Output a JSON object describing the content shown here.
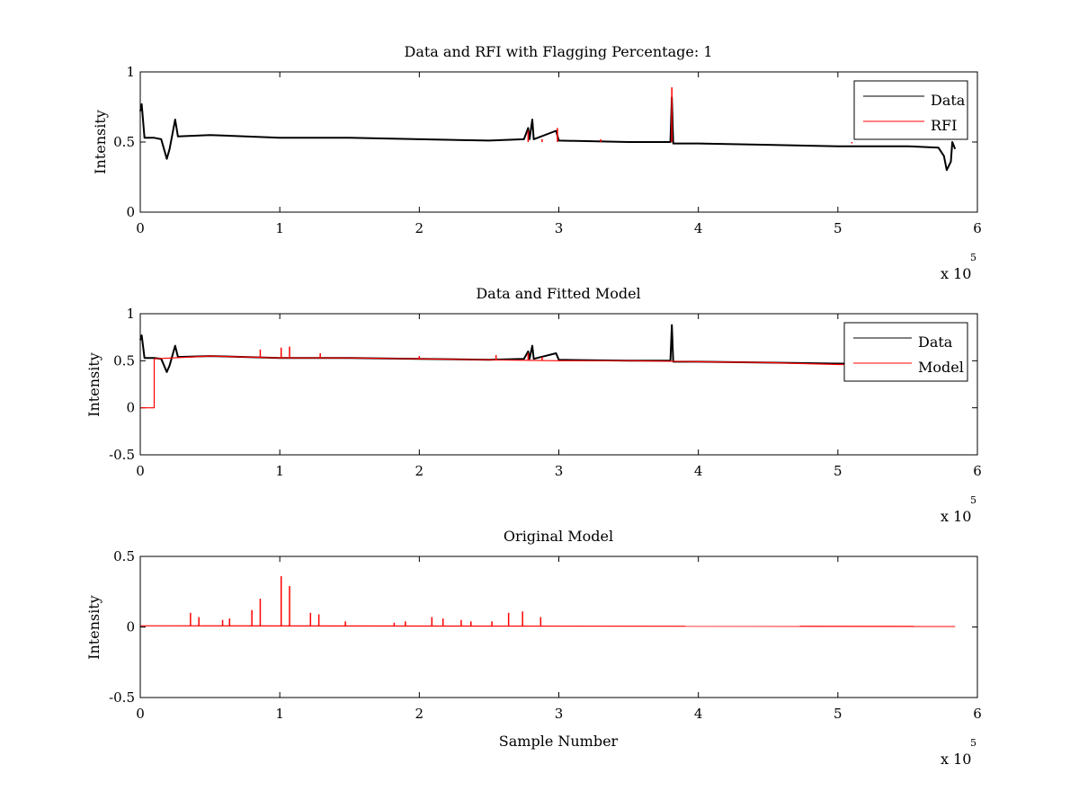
{
  "figure": {
    "background": "#ffffff",
    "data_color": "#000000",
    "model_color": "#ff0000"
  },
  "chart_data": [
    {
      "type": "line",
      "title": "Data and RFI with Flagging Percentage: 1",
      "xlabel": "",
      "ylabel": "Intensity",
      "xlim": [
        0,
        6
      ],
      "ylim": [
        0,
        1
      ],
      "xticks": [
        "0",
        "1",
        "2",
        "3",
        "4",
        "5",
        "6"
      ],
      "yticks": [
        "0",
        "0.5",
        "1"
      ],
      "x_multiplier": {
        "base": "x 10",
        "exponent": "5"
      },
      "legend_position": "top-right",
      "legend": [
        "Data",
        "RFI"
      ],
      "grid": false,
      "series": [
        {
          "name": "Data",
          "color": "#000000",
          "points": [
            [
              0,
              0.72
            ],
            [
              0.01,
              0.77
            ],
            [
              0.03,
              0.53
            ],
            [
              0.1,
              0.53
            ],
            [
              0.15,
              0.52
            ],
            [
              0.19,
              0.38
            ],
            [
              0.21,
              0.45
            ],
            [
              0.25,
              0.66
            ],
            [
              0.27,
              0.54
            ],
            [
              0.5,
              0.55
            ],
            [
              1.0,
              0.53
            ],
            [
              1.5,
              0.53
            ],
            [
              2.0,
              0.52
            ],
            [
              2.5,
              0.51
            ],
            [
              2.75,
              0.52
            ],
            [
              2.78,
              0.6
            ],
            [
              2.79,
              0.52
            ],
            [
              2.81,
              0.66
            ],
            [
              2.82,
              0.52
            ],
            [
              2.98,
              0.58
            ],
            [
              3.0,
              0.51
            ],
            [
              3.5,
              0.5
            ],
            [
              3.8,
              0.5
            ],
            [
              3.81,
              0.82
            ],
            [
              3.82,
              0.49
            ],
            [
              4.0,
              0.49
            ],
            [
              4.5,
              0.48
            ],
            [
              5.0,
              0.47
            ],
            [
              5.5,
              0.47
            ],
            [
              5.72,
              0.46
            ],
            [
              5.76,
              0.4
            ],
            [
              5.78,
              0.3
            ],
            [
              5.81,
              0.36
            ],
            [
              5.82,
              0.5
            ],
            [
              5.84,
              0.45
            ]
          ]
        },
        {
          "name": "RFI",
          "color": "#ff0000",
          "spikes": [
            [
              2.78,
              0.58
            ],
            [
              2.88,
              0.52
            ],
            [
              2.99,
              0.6
            ],
            [
              3.3,
              0.52
            ],
            [
              3.81,
              0.89
            ],
            [
              5.1,
              0.49
            ]
          ]
        }
      ]
    },
    {
      "type": "line",
      "title": "Data and Fitted Model",
      "xlabel": "",
      "ylabel": "Intensity",
      "xlim": [
        0,
        6
      ],
      "ylim": [
        -0.5,
        1
      ],
      "xticks": [
        "0",
        "1",
        "2",
        "3",
        "4",
        "5",
        "6"
      ],
      "yticks": [
        "-0.5",
        "0",
        "0.5",
        "1"
      ],
      "x_multiplier": {
        "base": "x 10",
        "exponent": "5"
      },
      "legend_position": "top-right",
      "legend": [
        "Data",
        "Model"
      ],
      "grid": false,
      "series": [
        {
          "name": "Data",
          "color": "#000000",
          "points": [
            [
              0,
              0.72
            ],
            [
              0.01,
              0.77
            ],
            [
              0.03,
              0.53
            ],
            [
              0.1,
              0.53
            ],
            [
              0.15,
              0.52
            ],
            [
              0.19,
              0.38
            ],
            [
              0.21,
              0.45
            ],
            [
              0.25,
              0.66
            ],
            [
              0.27,
              0.54
            ],
            [
              0.5,
              0.55
            ],
            [
              1.0,
              0.53
            ],
            [
              1.5,
              0.53
            ],
            [
              2.0,
              0.52
            ],
            [
              2.5,
              0.51
            ],
            [
              2.75,
              0.52
            ],
            [
              2.78,
              0.6
            ],
            [
              2.79,
              0.52
            ],
            [
              2.81,
              0.66
            ],
            [
              2.82,
              0.52
            ],
            [
              2.98,
              0.58
            ],
            [
              3.0,
              0.51
            ],
            [
              3.5,
              0.5
            ],
            [
              3.8,
              0.5
            ],
            [
              3.81,
              0.88
            ],
            [
              3.82,
              0.49
            ],
            [
              4.0,
              0.49
            ],
            [
              4.5,
              0.48
            ],
            [
              5.0,
              0.47
            ],
            [
              5.1,
              0.47
            ]
          ]
        },
        {
          "name": "Model",
          "color": "#ff0000",
          "points": [
            [
              0,
              0
            ],
            [
              0.1,
              0
            ],
            [
              0.1,
              0.52
            ],
            [
              0.5,
              0.55
            ],
            [
              1.0,
              0.53
            ],
            [
              1.5,
              0.53
            ],
            [
              2.0,
              0.52
            ],
            [
              2.5,
              0.51
            ],
            [
              3.0,
              0.5
            ],
            [
              3.5,
              0.5
            ],
            [
              4.0,
              0.49
            ],
            [
              4.5,
              0.48
            ],
            [
              5.0,
              0.46
            ],
            [
              5.1,
              0.46
            ]
          ],
          "spikes": [
            [
              0.86,
              0.62
            ],
            [
              1.01,
              0.64
            ],
            [
              1.07,
              0.65
            ],
            [
              1.29,
              0.58
            ],
            [
              2.0,
              0.55
            ],
            [
              2.55,
              0.56
            ],
            [
              2.78,
              0.58
            ],
            [
              2.88,
              0.54
            ]
          ]
        }
      ]
    },
    {
      "type": "line",
      "title": "Original Model",
      "xlabel": "Sample Number",
      "ylabel": "Intensity",
      "xlim": [
        0,
        6
      ],
      "ylim": [
        -0.5,
        0.5
      ],
      "xticks": [
        "0",
        "1",
        "2",
        "3",
        "4",
        "5",
        "6"
      ],
      "yticks": [
        "-0.5",
        "0",
        "0.5"
      ],
      "x_multiplier": {
        "base": "x 10",
        "exponent": "5"
      },
      "legend_position": "none",
      "legend": [],
      "grid": false,
      "series": [
        {
          "name": "",
          "color": "#ff0000",
          "baseline": [
            [
              0,
              0.008
            ],
            [
              5.84,
              0.004
            ]
          ],
          "spikes": [
            [
              0.36,
              0.1
            ],
            [
              0.42,
              0.07
            ],
            [
              0.59,
              0.05
            ],
            [
              0.64,
              0.06
            ],
            [
              0.8,
              0.12
            ],
            [
              0.86,
              0.2
            ],
            [
              1.01,
              0.36
            ],
            [
              1.07,
              0.29
            ],
            [
              1.22,
              0.1
            ],
            [
              1.28,
              0.09
            ],
            [
              1.47,
              0.04
            ],
            [
              1.82,
              0.03
            ],
            [
              1.9,
              0.04
            ],
            [
              2.09,
              0.07
            ],
            [
              2.17,
              0.06
            ],
            [
              2.3,
              0.05
            ],
            [
              2.37,
              0.04
            ],
            [
              2.52,
              0.04
            ],
            [
              2.64,
              0.1
            ],
            [
              2.74,
              0.11
            ],
            [
              2.87,
              0.07
            ]
          ]
        }
      ]
    }
  ]
}
